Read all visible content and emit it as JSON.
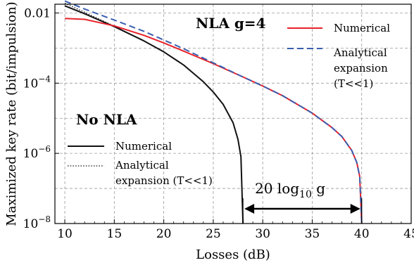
{
  "chart_data": {
    "type": "line",
    "title": "",
    "xlabel": "Losses (dB)",
    "ylabel": "Maximized key rate (bit/impulsion)",
    "xlim": [
      9,
      45
    ],
    "ylim_log10": [
      -8,
      -1.75
    ],
    "yscale": "log",
    "grid": true,
    "x_ticks": [
      10,
      15,
      20,
      25,
      30,
      35,
      40,
      45
    ],
    "x_tick_labels": [
      "10",
      "15",
      "20",
      "25",
      "30",
      "35",
      "40",
      "45"
    ],
    "y_ticks": [
      0.01,
      0.0001,
      1e-06,
      1e-08
    ],
    "y_tick_labels": [
      {
        "base": "0.01",
        "exp": ""
      },
      {
        "base": "10",
        "exp": "−4"
      },
      {
        "base": "10",
        "exp": "−6"
      },
      {
        "base": "10",
        "exp": "−8"
      }
    ],
    "groups": [
      {
        "heading": "NLA g=4",
        "legend_position": "top-right",
        "series": [
          {
            "name": "Numerical",
            "color": "#e8212a",
            "style": "solid",
            "x": [
              10,
              12,
              15,
              18,
              20,
              22,
              25,
              28,
              30,
              32,
              35,
              37,
              38,
              39,
              39.5,
              39.8,
              40
            ],
            "y": [
              0.007,
              0.0066,
              0.0043,
              0.0023,
              0.0014,
              0.00082,
              0.00036,
              0.00015,
              8.3e-05,
              4.4e-05,
              1.4e-05,
              5.4e-06,
              3e-06,
              1.2e-06,
              5.5e-07,
              2.2e-07,
              1e-08
            ]
          },
          {
            "name": "Analytical expansion (T<<1)",
            "name_lines": [
              "Analytical",
              "expansion",
              "(T<<1)"
            ],
            "color": "#3a5fb0",
            "style": "dashed",
            "x": [
              10,
              12,
              15,
              18,
              20,
              22,
              25,
              28,
              30,
              32,
              35,
              37,
              38,
              39,
              39.5,
              39.8,
              40
            ],
            "y": [
              0.022,
              0.013,
              0.0063,
              0.003,
              0.0017,
              0.00096,
              0.00038,
              0.00015,
              8.3e-05,
              4.4e-05,
              1.4e-05,
              5.4e-06,
              3e-06,
              1.2e-06,
              5.5e-07,
              2.2e-07,
              1e-08
            ]
          }
        ]
      },
      {
        "heading": "No NLA",
        "legend_position": "lower-left",
        "series": [
          {
            "name": "Numerical",
            "color": "#111111",
            "style": "solid",
            "x": [
              10,
              12,
              15,
              18,
              20,
              22,
              24,
              25,
              26,
              27,
              27.5,
              27.8,
              28
            ],
            "y": [
              0.016,
              0.0095,
              0.0041,
              0.0016,
              0.00078,
              0.00033,
              0.00011,
              5.6e-05,
              2.5e-05,
              7.5e-06,
              2.5e-06,
              8e-07,
              1e-08
            ]
          },
          {
            "name": "Analytical expansion (T<<1)",
            "name_lines": [
              "Analytical",
              "expansion (T<<1)"
            ],
            "color": "#111111",
            "style": "dotted",
            "x": [
              10,
              12,
              15,
              18,
              20,
              22,
              24,
              25,
              26,
              27,
              27.5,
              27.8,
              28
            ],
            "y": [
              0.019,
              0.0105,
              0.0042,
              0.0016,
              0.00078,
              0.00033,
              0.00011,
              5.6e-05,
              2.5e-05,
              7.5e-06,
              2.5e-06,
              8e-07,
              1e-08
            ]
          }
        ]
      }
    ],
    "annotations": [
      {
        "text_main": "20 log",
        "text_sub": "10",
        "text_tail": " g",
        "arrow_from_x": 28,
        "arrow_to_x": 40,
        "arrow_y": 1e-08,
        "arrow_direction": "double"
      }
    ]
  }
}
